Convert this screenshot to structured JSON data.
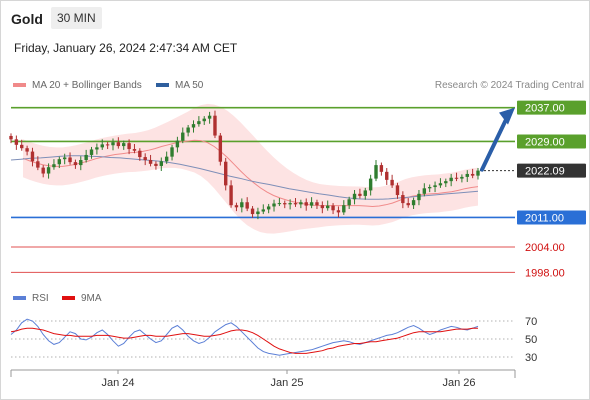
{
  "header": {
    "title": "Gold",
    "timeframe": "30 MIN"
  },
  "date_label": "Friday, January 26, 2024 2:47:34 AM CET",
  "legend": {
    "ma20_label": "MA 20 + Bollinger Bands",
    "ma50_label": "MA 50",
    "ma20_color": "#f08a8a",
    "ma50_color": "#2f5f9e",
    "credit": "Research © 2024 Trading Central"
  },
  "rsi_legend": {
    "rsi_label": "RSI",
    "ma9_label": "9MA",
    "rsi_color": "#5b7fd6",
    "ma9_color": "#e01010"
  },
  "chart_data": [
    {
      "type": "candlestick",
      "x_ticks": [
        "Jan 24",
        "Jan 25",
        "Jan 26"
      ],
      "ylim": [
        1995,
        2040
      ],
      "levels": [
        {
          "value": 2037.0,
          "label": "2037.00",
          "kind": "resistance",
          "color": "#5aa02c"
        },
        {
          "value": 2029.0,
          "label": "2029.00",
          "kind": "resistance",
          "color": "#5aa02c"
        },
        {
          "value": 2022.09,
          "label": "2022.09",
          "kind": "last",
          "color": "#333333"
        },
        {
          "value": 2011.0,
          "label": "2011.00",
          "kind": "pivot",
          "color": "#2a6fd6"
        },
        {
          "value": 2004.0,
          "label": "2004.00",
          "kind": "support",
          "color": "#e05050"
        },
        {
          "value": 1998.0,
          "label": "1998.00",
          "kind": "support",
          "color": "#e05050"
        }
      ],
      "close": [
        2029.5,
        2028.2,
        2027.4,
        2026.6,
        2024.3,
        2022.8,
        2021.4,
        2022.9,
        2023.6,
        2024.8,
        2025.2,
        2024.1,
        2023.4,
        2024.6,
        2025.8,
        2027.1,
        2027.6,
        2028.3,
        2028.1,
        2028.8,
        2027.9,
        2028.6,
        2027.2,
        2026.8,
        2025.3,
        2024.6,
        2023.7,
        2023.2,
        2024.3,
        2025.4,
        2027.6,
        2029.2,
        2031.1,
        2032.3,
        2033.1,
        2033.8,
        2034.4,
        2035.1,
        2030.4,
        2024.2,
        2018.6,
        2013.9,
        2013.4,
        2014.6,
        2013.1,
        2011.8,
        2012.4,
        2012.9,
        2013.6,
        2014.3,
        2014.4,
        2014.1,
        2014.4,
        2014.1,
        2014.6,
        2013.8,
        2014.6,
        2013.9,
        2013.2,
        2013.8,
        2012.7,
        2012.2,
        2013.9,
        2015.3,
        2016.6,
        2016.1,
        2017.4,
        2020.2,
        2023.4,
        2021.8,
        2019.9,
        2018.6,
        2016.3,
        2014.4,
        2013.9,
        2015.1,
        2016.6,
        2017.9,
        2018.2,
        2018.6,
        2019.1,
        2019.6,
        2020.4,
        2020.2,
        2020.6,
        2021.3,
        2020.9,
        2022.1
      ],
      "ma20": [
        2025.0,
        2024.4,
        2023.9,
        2023.5,
        2023.2,
        2023.1,
        2023.1,
        2023.3,
        2023.6,
        2024.0,
        2024.4,
        2024.9,
        2025.3,
        2025.6,
        2025.9,
        2026.1,
        2026.3,
        2026.4,
        2026.6,
        2026.9,
        2027.3,
        2027.8,
        2028.2,
        2028.6,
        2028.9,
        2029.1,
        2029.3,
        2029.2,
        2028.7,
        2027.8,
        2026.6,
        2025.2,
        2023.6,
        2022.0,
        2020.5,
        2019.2,
        2018.0,
        2017.0,
        2016.2,
        2015.6,
        2015.1,
        2014.7,
        2014.4,
        2014.1,
        2013.9,
        2013.8,
        2013.8,
        2013.8,
        2013.8,
        2013.8,
        2013.8,
        2013.8,
        2013.7,
        2013.6,
        2013.7,
        2014.0,
        2014.4,
        2015.0,
        2015.6,
        2016.0,
        2016.3,
        2016.5,
        2016.6,
        2016.7,
        2016.9,
        2017.1,
        2017.4,
        2017.8,
        2018.1,
        2018.3
      ],
      "ma50": [
        2024.6,
        2024.8,
        2025.0,
        2025.1,
        2025.3,
        2025.5,
        2025.6,
        2025.6,
        2025.5,
        2025.4,
        2025.2,
        2025.1,
        2024.9,
        2024.7,
        2024.5,
        2024.3,
        2024.0,
        2023.6,
        2023.1,
        2022.6,
        2022.0,
        2021.4,
        2020.8,
        2020.3,
        2019.7,
        2019.2,
        2018.8,
        2018.3,
        2017.8,
        2017.4,
        2017.0,
        2016.6,
        2016.3,
        2015.9,
        2015.6,
        2015.4,
        2015.3,
        2015.3,
        2015.4,
        2015.6,
        2015.8,
        2016.0,
        2016.2,
        2016.4,
        2016.6,
        2016.8,
        2017.0,
        2017.2
      ]
    },
    {
      "type": "line",
      "name": "RSI",
      "ylim": [
        20,
        80
      ],
      "y_ticks": [
        70,
        50,
        30
      ],
      "rsi": [
        55,
        60,
        68,
        72,
        70,
        64,
        55,
        48,
        44,
        46,
        52,
        58,
        56,
        50,
        49,
        52,
        57,
        60,
        55,
        48,
        42,
        45,
        52,
        58,
        60,
        55,
        50,
        46,
        48,
        55,
        62,
        65,
        60,
        53,
        48,
        45,
        47,
        52,
        58,
        62,
        66,
        68,
        64,
        58,
        52,
        46,
        40,
        36,
        34,
        33,
        32,
        33,
        34,
        35,
        36,
        37,
        38,
        40,
        42,
        44,
        46,
        47,
        48,
        47,
        45,
        44,
        46,
        48,
        50,
        52,
        54,
        55,
        57,
        60,
        63,
        65,
        62,
        58,
        55,
        57,
        60,
        62,
        64,
        63,
        61,
        60,
        62,
        64
      ],
      "ma9": [
        58,
        59,
        61,
        62,
        62,
        61,
        60,
        58,
        56,
        55,
        54,
        54,
        53,
        53,
        53,
        53,
        54,
        54,
        54,
        53,
        52,
        51,
        51,
        52,
        53,
        54,
        54,
        53,
        53,
        53,
        54,
        55,
        56,
        56,
        55,
        54,
        53,
        53,
        54,
        55,
        57,
        59,
        60,
        60,
        59,
        57,
        54,
        50,
        46,
        42,
        39,
        37,
        35,
        34,
        34,
        34,
        35,
        36,
        37,
        39,
        40,
        42,
        43,
        44,
        45,
        45,
        46,
        47,
        47,
        48,
        49,
        50,
        51,
        53,
        55,
        57,
        58,
        58,
        58,
        58,
        58,
        59,
        60,
        61,
        61,
        61,
        62,
        62
      ]
    }
  ]
}
